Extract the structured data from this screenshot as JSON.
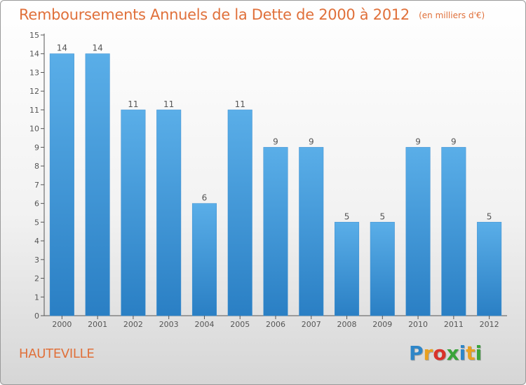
{
  "title": "Remboursements Annuels de la Dette de 2000 à 2012",
  "unit_note": "(en milliers d'€)",
  "commune": "HAUTEVILLE",
  "logo": {
    "letters": [
      "P",
      "r",
      "o",
      "x",
      "i",
      "t",
      "i"
    ],
    "colors": [
      "#2e86c8",
      "#e8a020",
      "#d9322a",
      "#3aa43a",
      "#2e86c8",
      "#e8a020",
      "#3aa43a"
    ]
  },
  "colors": {
    "title": "#e0703a",
    "bar_light": "#5aaee8",
    "bar_dark": "#2a7fc4",
    "axis": "#555555",
    "label": "#555555"
  },
  "chart_data": {
    "type": "bar",
    "title": "Remboursements Annuels de la Dette de 2000 à 2012",
    "ylabel": "",
    "xlabel": "",
    "categories": [
      "2000",
      "2001",
      "2002",
      "2003",
      "2004",
      "2005",
      "2006",
      "2007",
      "2008",
      "2009",
      "2010",
      "2011",
      "2012"
    ],
    "values": [
      14,
      14,
      11,
      11,
      6,
      11,
      9,
      9,
      5,
      5,
      9,
      9,
      5
    ],
    "ylim": [
      0,
      15
    ],
    "yticks": [
      0,
      1,
      2,
      3,
      4,
      5,
      6,
      7,
      8,
      9,
      10,
      11,
      12,
      13,
      14,
      15
    ],
    "grid": false,
    "data_labels": true
  }
}
